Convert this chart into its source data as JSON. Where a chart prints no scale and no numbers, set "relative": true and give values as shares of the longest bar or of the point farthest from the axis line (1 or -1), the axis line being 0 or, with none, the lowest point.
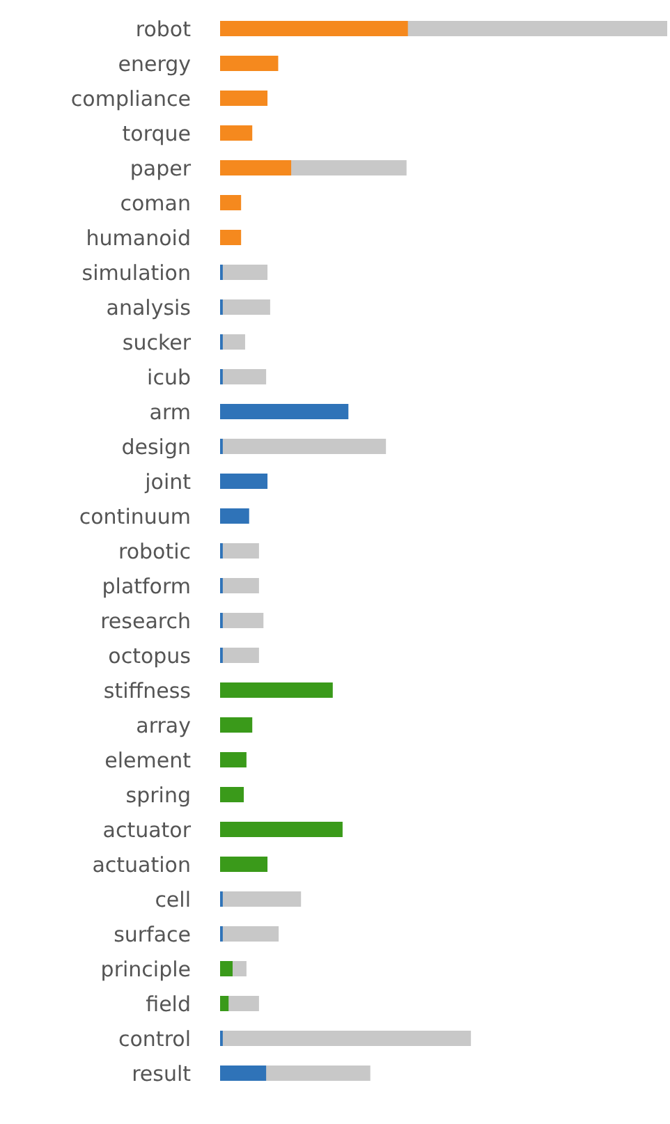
{
  "chart_data": {
    "type": "bar",
    "orientation": "horizontal",
    "relative": true,
    "categories": [
      "robot",
      "energy",
      "compliance",
      "torque",
      "paper",
      "coman",
      "humanoid",
      "simulation",
      "analysis",
      "sucker",
      "icub",
      "arm",
      "design",
      "joint",
      "continuum",
      "robotic",
      "platform",
      "research",
      "octopus",
      "stiffness",
      "array",
      "element",
      "spring",
      "actuator",
      "actuation",
      "cell",
      "surface",
      "principle",
      "field",
      "control",
      "result"
    ],
    "series": [
      {
        "color": "#c8c8c8",
        "values": [
          1.0,
          null,
          null,
          null,
          0.417,
          null,
          null,
          0.106,
          0.112,
          0.056,
          0.103,
          null,
          0.371,
          null,
          null,
          0.087,
          0.087,
          0.097,
          0.087,
          null,
          null,
          null,
          null,
          null,
          null,
          0.181,
          0.131,
          0.059,
          0.087,
          0.561,
          0.336
        ]
      },
      {
        "colors": [
          "#f5891e",
          "#f5891e",
          "#f5891e",
          "#f5891e",
          "#f5891e",
          "#f5891e",
          "#f5891e",
          "#2f73b8",
          "#2f73b8",
          "#2f73b8",
          "#2f73b8",
          "#2f73b8",
          "#2f73b8",
          "#2f73b8",
          "#2f73b8",
          "#2f73b8",
          "#2f73b8",
          "#2f73b8",
          "#2f73b8",
          "#3a9a1a",
          "#3a9a1a",
          "#3a9a1a",
          "#3a9a1a",
          "#3a9a1a",
          "#3a9a1a",
          "#2f73b8",
          "#2f73b8",
          "#3a9a1a",
          "#3a9a1a",
          "#2f73b8",
          "#2f73b8"
        ],
        "values": [
          0.42,
          0.13,
          0.106,
          0.072,
          0.159,
          0.047,
          0.047,
          0.006,
          0.006,
          0.006,
          0.006,
          0.287,
          0.006,
          0.106,
          0.065,
          0.006,
          0.006,
          0.006,
          0.006,
          0.252,
          0.072,
          0.059,
          0.053,
          0.274,
          0.106,
          0.006,
          0.006,
          0.028,
          0.019,
          0.006,
          0.103
        ]
      }
    ]
  }
}
